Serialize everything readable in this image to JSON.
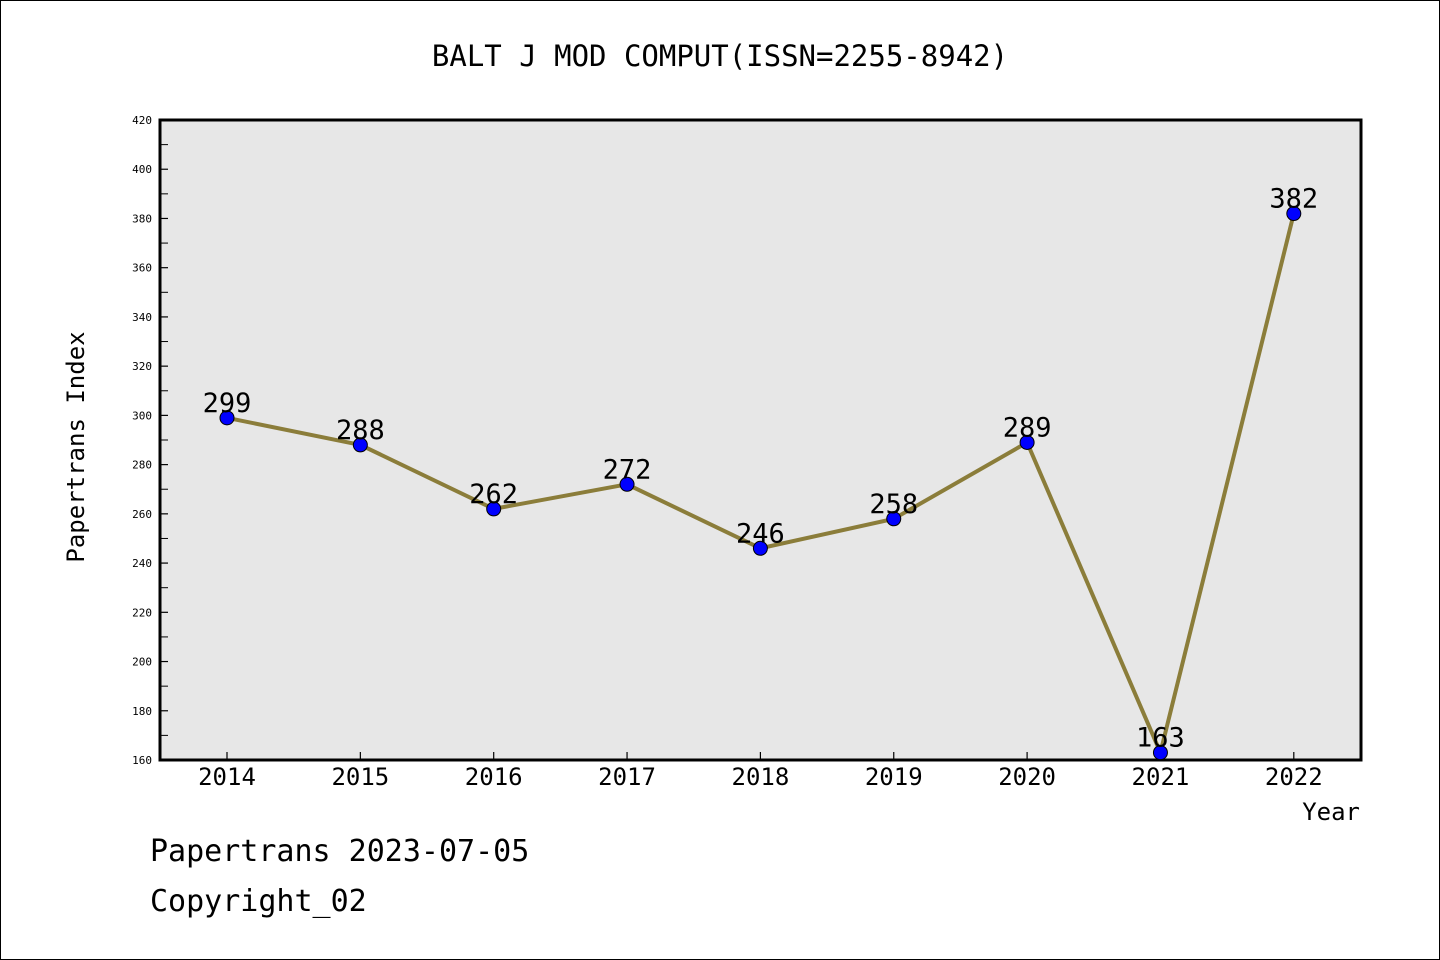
{
  "chart_data": {
    "type": "line",
    "title": "BALT J MOD COMPUT(ISSN=2255-8942)",
    "xlabel": "Year",
    "ylabel": "Papertrans Index",
    "categories": [
      "2014",
      "2015",
      "2016",
      "2017",
      "2018",
      "2019",
      "2020",
      "2021",
      "2022"
    ],
    "values": [
      299,
      288,
      262,
      272,
      246,
      258,
      289,
      163,
      382
    ],
    "data_labels": [
      "299",
      "288",
      "262",
      "272",
      "246",
      "258",
      "289",
      "163",
      "382"
    ],
    "ylim": [
      160,
      420
    ],
    "yticks": [
      "160",
      "180",
      "200",
      "220",
      "240",
      "260",
      "280",
      "300",
      "320",
      "340",
      "360",
      "380",
      "400",
      "420"
    ],
    "grid": false,
    "legend": "none",
    "colors": {
      "line": "#8b7d3a",
      "marker": "#0000ff",
      "plot_background": "#e7e7e7"
    }
  },
  "footer": {
    "line1": "Papertrans 2023-07-05",
    "line2": "Copyright_02"
  }
}
